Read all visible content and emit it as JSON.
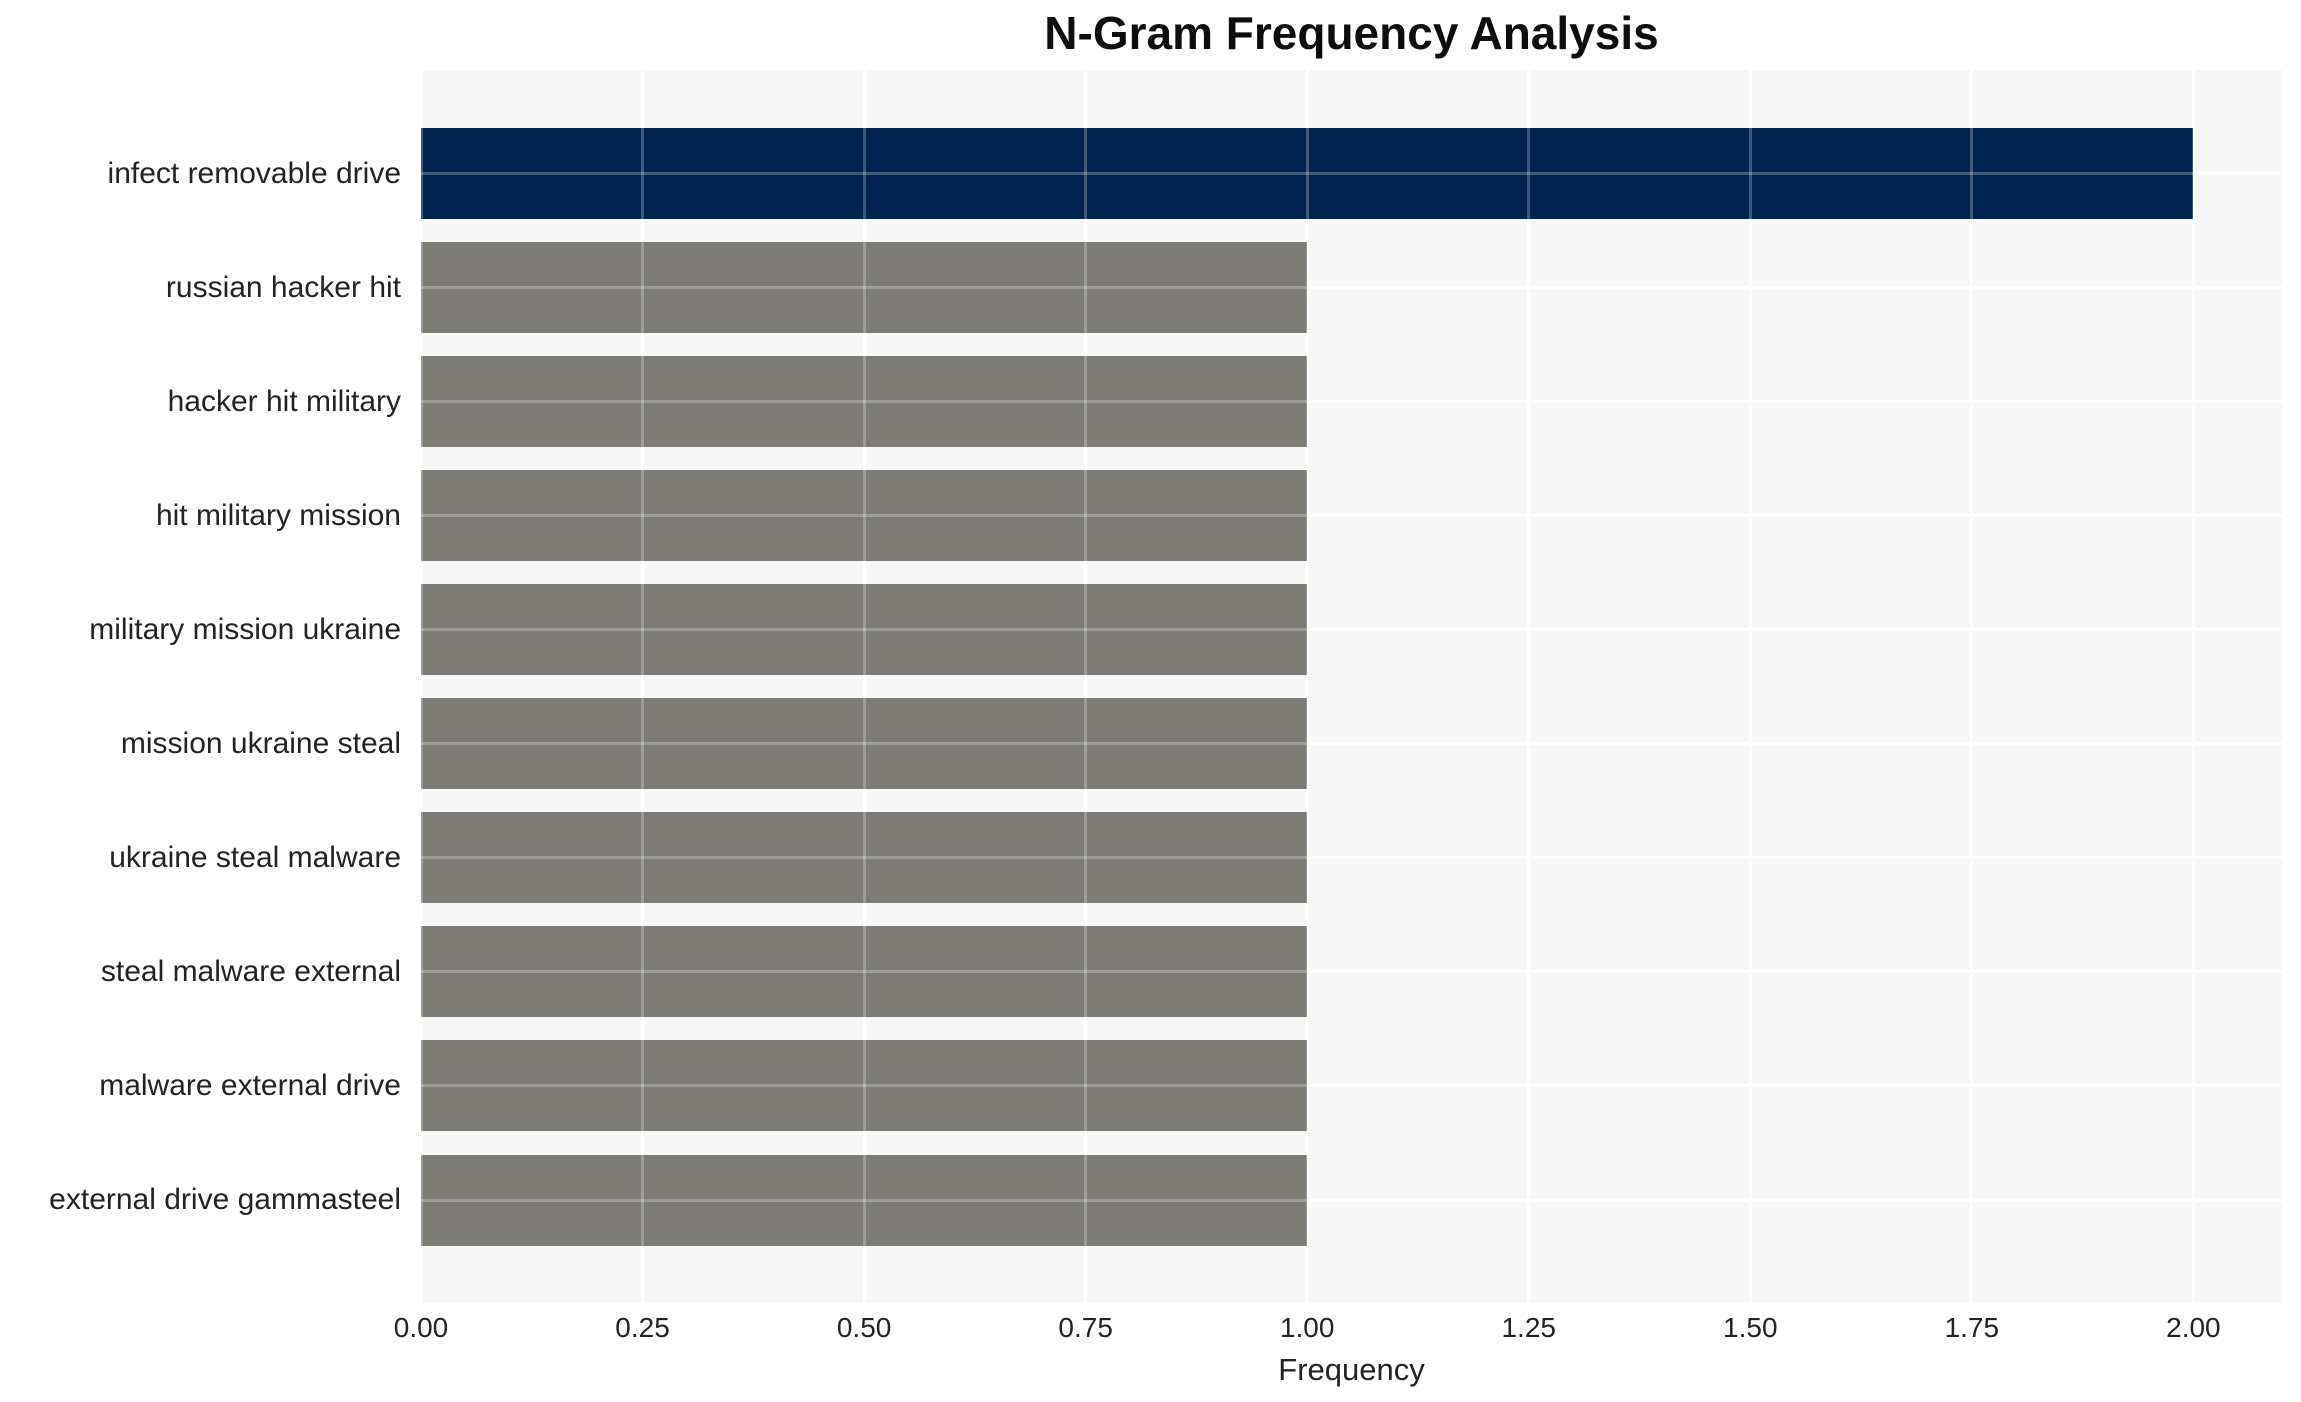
{
  "chart_data": {
    "type": "bar",
    "orientation": "horizontal",
    "title": "N-Gram Frequency Analysis",
    "xlabel": "Frequency",
    "ylabel": "",
    "categories": [
      "infect removable drive",
      "russian hacker hit",
      "hacker hit military",
      "hit military mission",
      "military mission ukraine",
      "mission ukraine steal",
      "ukraine steal malware",
      "steal malware external",
      "malware external drive",
      "external drive gammasteel"
    ],
    "values": [
      2,
      1,
      1,
      1,
      1,
      1,
      1,
      1,
      1,
      1
    ],
    "bar_colors": [
      "#012350",
      "#7c7b76",
      "#7c7b76",
      "#7c7b76",
      "#7c7b76",
      "#7c7b76",
      "#7c7b76",
      "#7c7b76",
      "#7c7b76",
      "#7c7b76"
    ],
    "xlim": [
      0,
      2.1
    ],
    "xticks": [
      {
        "value": 0.0,
        "label": "0.00"
      },
      {
        "value": 0.25,
        "label": "0.25"
      },
      {
        "value": 0.5,
        "label": "0.50"
      },
      {
        "value": 0.75,
        "label": "0.75"
      },
      {
        "value": 1.0,
        "label": "1.00"
      },
      {
        "value": 1.25,
        "label": "1.25"
      },
      {
        "value": 1.5,
        "label": "1.50"
      },
      {
        "value": 1.75,
        "label": "1.75"
      },
      {
        "value": 2.0,
        "label": "2.00"
      }
    ],
    "grid": true,
    "legend": false,
    "colors": {
      "highlight_bar": "#012350",
      "default_bar": "#7c7b76",
      "plot_background": "#f7f7f7",
      "grid_line": "#ffffff",
      "figure_background": "#ffffff",
      "text": "#232323",
      "title_text": "#0d0d0d"
    }
  }
}
